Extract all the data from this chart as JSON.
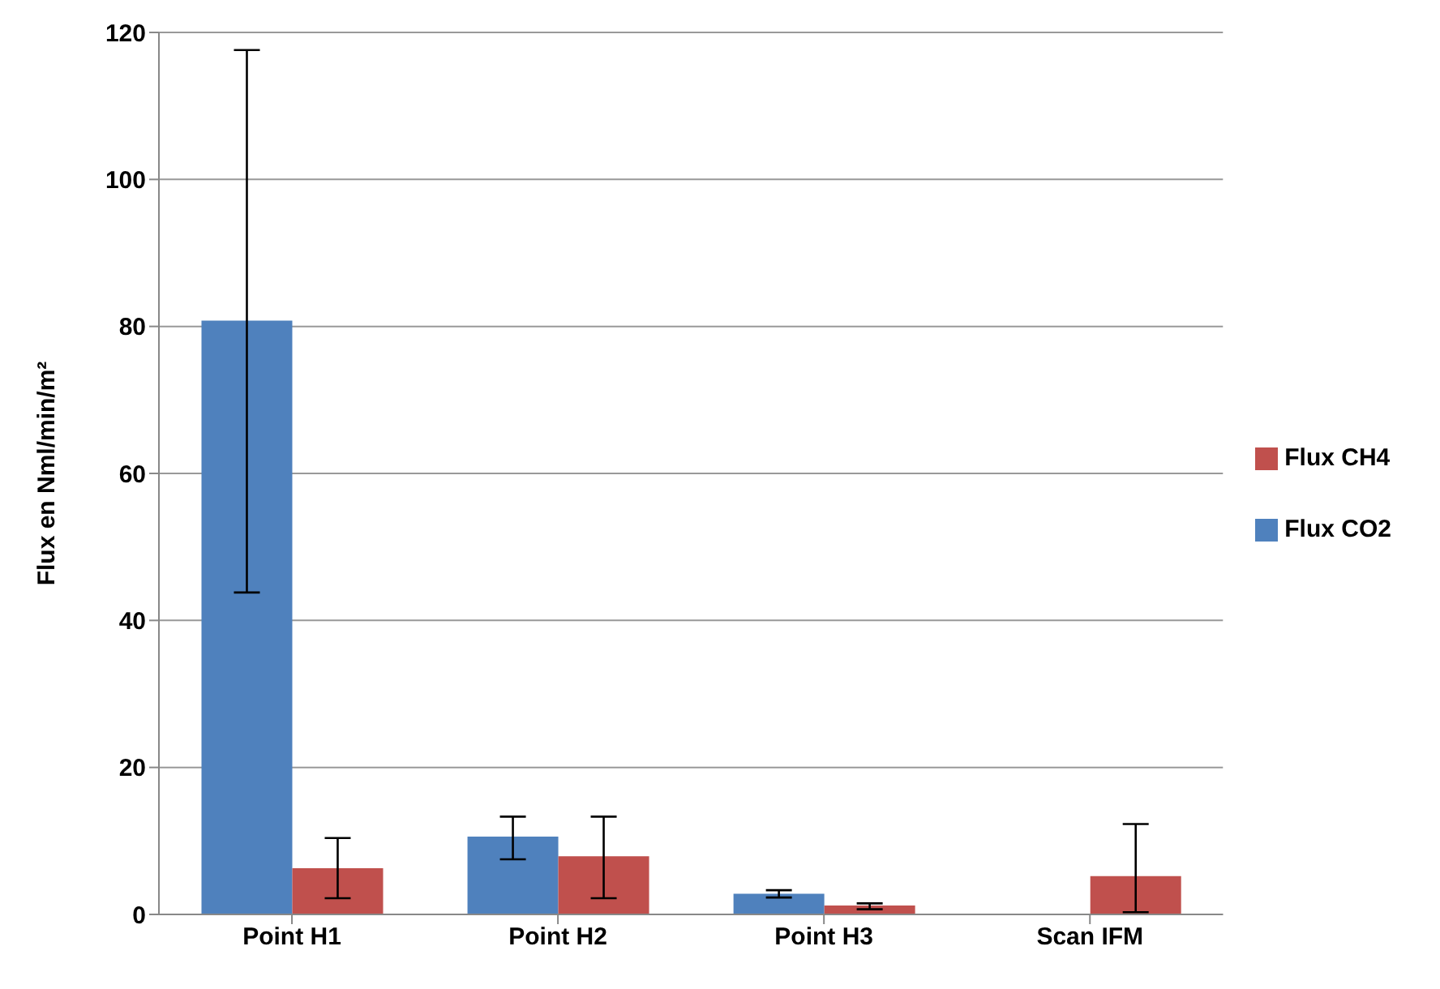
{
  "chart_data": {
    "type": "bar",
    "ylabel": "Flux en Nml/min/m²",
    "categories": [
      "Point H1",
      "Point H2",
      "Point H3",
      "Scan IFM"
    ],
    "series": [
      {
        "name": "Flux CO2",
        "color": "#4f81bd",
        "values": [
          80.8,
          10.6,
          2.8,
          null
        ],
        "errors": [
          [
            43.8,
            117.6
          ],
          [
            7.5,
            13.3
          ],
          [
            2.3,
            3.3
          ],
          null
        ]
      },
      {
        "name": "Flux CH4",
        "color": "#c0504d",
        "values": [
          6.3,
          7.9,
          1.2,
          5.2
        ],
        "errors": [
          [
            2.2,
            10.4
          ],
          [
            2.2,
            13.3
          ],
          [
            0.7,
            1.5
          ],
          [
            0.3,
            12.3
          ]
        ]
      }
    ],
    "ylim": [
      0,
      120
    ],
    "yticks": [
      0,
      20,
      40,
      60,
      80,
      100,
      120
    ],
    "grid": "y",
    "legend": "right"
  }
}
